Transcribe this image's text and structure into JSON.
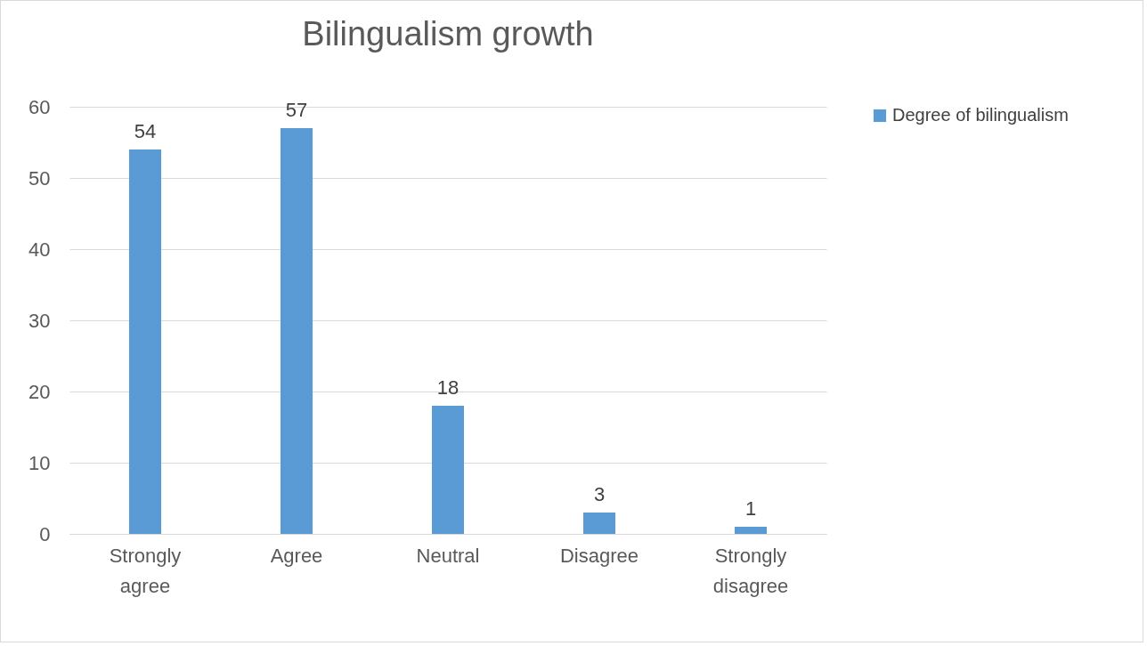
{
  "chart_data": {
    "type": "bar",
    "title": "Bilingualism growth",
    "categories": [
      "Strongly agree",
      "Agree",
      "Neutral",
      "Disagree",
      "Strongly disagree"
    ],
    "series": [
      {
        "name": "Degree of bilingualism",
        "color": "#5b9bd5",
        "values": [
          54,
          57,
          18,
          3,
          1
        ]
      }
    ],
    "ylim": [
      0,
      60
    ],
    "yticks": [
      0,
      10,
      20,
      30,
      40,
      50,
      60
    ],
    "grid": "y",
    "legend": "right",
    "data_labels": true
  }
}
